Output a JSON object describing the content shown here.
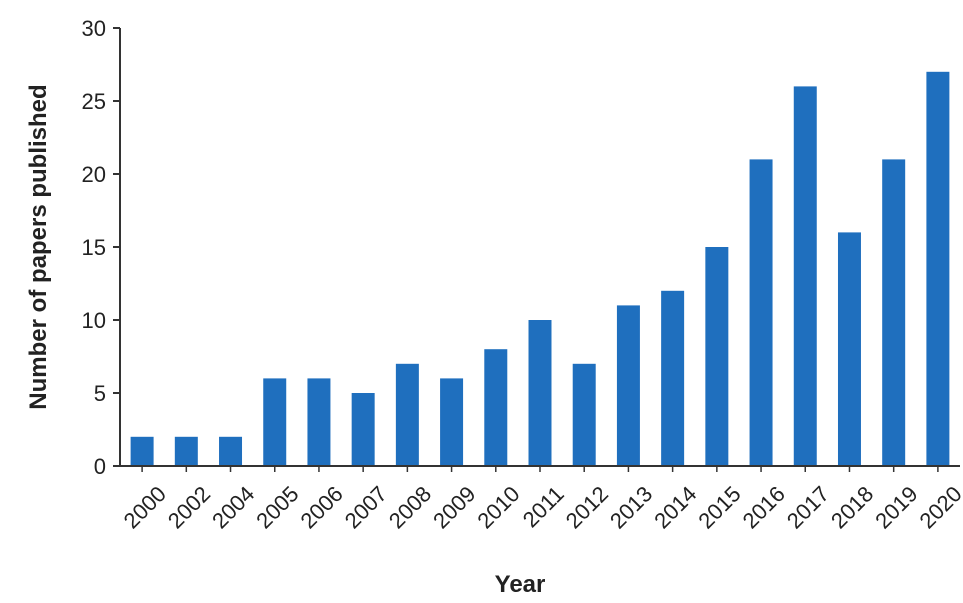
{
  "chart_data": {
    "type": "bar",
    "title": "",
    "xlabel": "Year",
    "ylabel": "Number of papers published",
    "ylim": [
      0,
      30
    ],
    "yticks": [
      0,
      5,
      10,
      15,
      20,
      25,
      30
    ],
    "grid": false,
    "legend": "none",
    "bar_color": "#1f6fbe",
    "categories": [
      "2000",
      "2002",
      "2004",
      "2005",
      "2006",
      "2007",
      "2008",
      "2009",
      "2010",
      "2011",
      "2012",
      "2013",
      "2014",
      "2015",
      "2016",
      "2017",
      "2018",
      "2019",
      "2020"
    ],
    "values": [
      2,
      2,
      2,
      6,
      6,
      5,
      7,
      6,
      8,
      10,
      7,
      11,
      12,
      15,
      21,
      26,
      16,
      21,
      27
    ]
  }
}
